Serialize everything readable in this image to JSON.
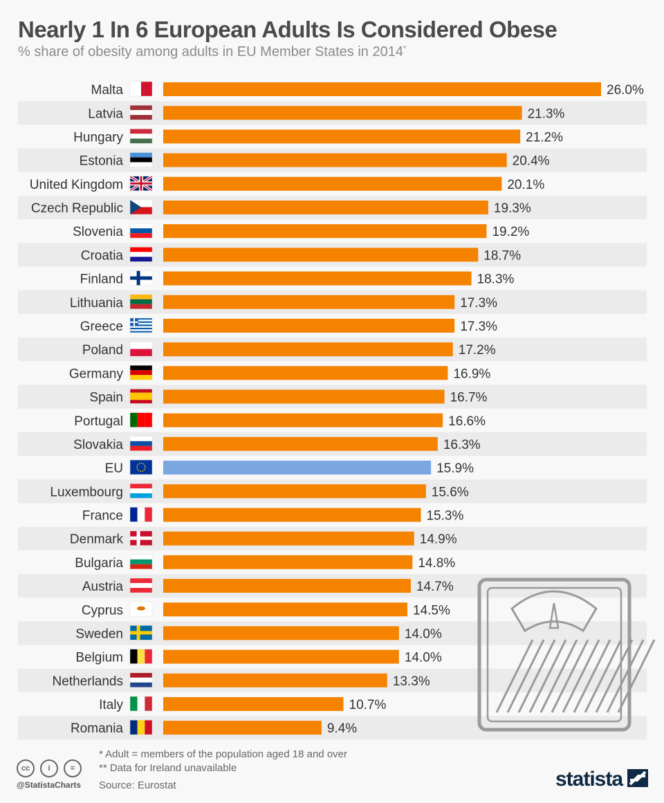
{
  "header": {
    "title": "Nearly 1 In 6 European Adults Is Considered Obese",
    "subtitle": "% share of obesity among adults in EU Member States in 2014",
    "subtitle_mark": "*"
  },
  "chart_data": {
    "type": "bar",
    "orientation": "horizontal",
    "categories": [
      "Malta",
      "Latvia",
      "Hungary",
      "Estonia",
      "United Kingdom",
      "Czech Republic",
      "Slovenia",
      "Croatia",
      "Finland",
      "Lithuania",
      "Greece",
      "Poland",
      "Germany",
      "Spain",
      "Portugal",
      "Slovakia",
      "EU",
      "Luxembourg",
      "France",
      "Denmark",
      "Bulgaria",
      "Austria",
      "Cyprus",
      "Sweden",
      "Belgium",
      "Netherlands",
      "Italy",
      "Romania"
    ],
    "values": [
      26.0,
      21.3,
      21.2,
      20.4,
      20.1,
      19.3,
      19.2,
      18.7,
      18.3,
      17.3,
      17.3,
      17.2,
      16.9,
      16.7,
      16.6,
      16.3,
      15.9,
      15.6,
      15.3,
      14.9,
      14.8,
      14.7,
      14.5,
      14.0,
      14.0,
      13.3,
      10.7,
      9.4
    ],
    "value_labels": [
      "26.0%",
      "21.3%",
      "21.2%",
      "20.4%",
      "20.1%",
      "19.3%",
      "19.2%",
      "18.7%",
      "18.3%",
      "17.3%",
      "17.3%",
      "17.2%",
      "16.9%",
      "16.7%",
      "16.6%",
      "16.3%",
      "15.9%",
      "15.6%",
      "15.3%",
      "14.9%",
      "14.8%",
      "14.7%",
      "14.5%",
      "14.0%",
      "14.0%",
      "13.3%",
      "10.7%",
      "9.4%"
    ],
    "unit": "%",
    "xlim": [
      0,
      26
    ],
    "grid": false,
    "colors": {
      "bar": "#f58300",
      "highlight": "#7ba7e1",
      "highlight_category": "EU"
    }
  },
  "footer": {
    "note1": "*   Adult = members of the population aged 18 and over",
    "note2": "** Data for Ireland unavailable",
    "source": "Source: Eurostat",
    "handle": "@StatistaCharts",
    "brand": "statista",
    "cc_icons": [
      "cc",
      "i",
      "="
    ]
  }
}
